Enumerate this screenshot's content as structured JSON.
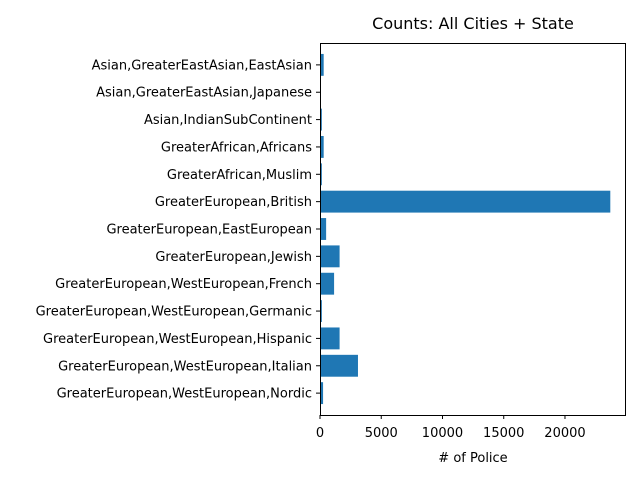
{
  "chart_data": {
    "type": "bar",
    "orientation": "horizontal",
    "title": "Counts: All Cities + State",
    "xlabel": "# of Police",
    "ylabel": "",
    "xlim": [
      0,
      24900
    ],
    "xticks": [
      0,
      5000,
      10000,
      15000,
      20000
    ],
    "grid": false,
    "bar_color": "#1f77b4",
    "categories": [
      "Asian,GreaterEastAsian,EastAsian",
      "Asian,GreaterEastAsian,Japanese",
      "Asian,IndianSubContinent",
      "GreaterAfrican,Africans",
      "GreaterAfrican,Muslim",
      "GreaterEuropean,British",
      "GreaterEuropean,EastEuropean",
      "GreaterEuropean,Jewish",
      "GreaterEuropean,WestEuropean,French",
      "GreaterEuropean,WestEuropean,Germanic",
      "GreaterEuropean,WestEuropean,Hispanic",
      "GreaterEuropean,WestEuropean,Italian",
      "GreaterEuropean,WestEuropean,Nordic"
    ],
    "values": [
      300,
      20,
      150,
      300,
      150,
      23700,
      500,
      1600,
      1150,
      150,
      1600,
      3100,
      250
    ]
  }
}
